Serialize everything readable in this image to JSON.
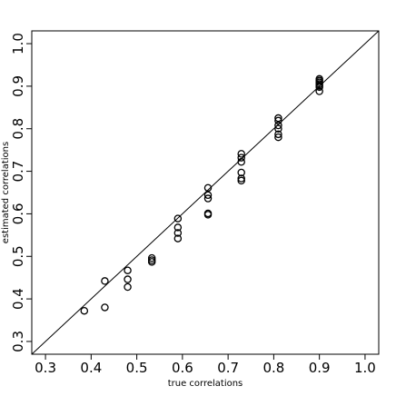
{
  "chart_data": {
    "type": "scatter",
    "title": "",
    "xlabel": "true correlations",
    "ylabel": "estimated correlations",
    "xlim": [
      0.27,
      1.03
    ],
    "ylim": [
      0.27,
      1.03
    ],
    "x_ticks": [
      0.3,
      0.4,
      0.5,
      0.6,
      0.7,
      0.8,
      0.9,
      1.0
    ],
    "x_tick_labels": [
      "0.3",
      "0.4",
      "0.5",
      "0.6",
      "0.7",
      "0.8",
      "0.9",
      "1.0"
    ],
    "y_ticks": [
      0.3,
      0.4,
      0.5,
      0.6,
      0.7,
      0.8,
      0.9,
      1.0
    ],
    "y_tick_labels": [
      "0.3",
      "0.4",
      "0.5",
      "0.6",
      "0.7",
      "0.8",
      "0.9",
      "1.0"
    ],
    "reference_line": {
      "slope": 1,
      "intercept": 0
    },
    "marker": "open-circle",
    "grid": false,
    "legend": "none",
    "points": [
      {
        "x": 0.385,
        "y": 0.372
      },
      {
        "x": 0.43,
        "y": 0.442
      },
      {
        "x": 0.43,
        "y": 0.38
      },
      {
        "x": 0.48,
        "y": 0.467
      },
      {
        "x": 0.48,
        "y": 0.446
      },
      {
        "x": 0.48,
        "y": 0.428
      },
      {
        "x": 0.533,
        "y": 0.496
      },
      {
        "x": 0.533,
        "y": 0.491
      },
      {
        "x": 0.533,
        "y": 0.487
      },
      {
        "x": 0.59,
        "y": 0.589
      },
      {
        "x": 0.59,
        "y": 0.568
      },
      {
        "x": 0.59,
        "y": 0.555
      },
      {
        "x": 0.59,
        "y": 0.542
      },
      {
        "x": 0.656,
        "y": 0.661
      },
      {
        "x": 0.656,
        "y": 0.644
      },
      {
        "x": 0.656,
        "y": 0.636
      },
      {
        "x": 0.656,
        "y": 0.601
      },
      {
        "x": 0.656,
        "y": 0.598
      },
      {
        "x": 0.729,
        "y": 0.741
      },
      {
        "x": 0.729,
        "y": 0.732
      },
      {
        "x": 0.729,
        "y": 0.722
      },
      {
        "x": 0.729,
        "y": 0.697
      },
      {
        "x": 0.729,
        "y": 0.683
      },
      {
        "x": 0.729,
        "y": 0.678
      },
      {
        "x": 0.81,
        "y": 0.825
      },
      {
        "x": 0.81,
        "y": 0.819
      },
      {
        "x": 0.81,
        "y": 0.808
      },
      {
        "x": 0.81,
        "y": 0.8
      },
      {
        "x": 0.81,
        "y": 0.787
      },
      {
        "x": 0.81,
        "y": 0.78
      },
      {
        "x": 0.9,
        "y": 0.917
      },
      {
        "x": 0.9,
        "y": 0.913
      },
      {
        "x": 0.9,
        "y": 0.909
      },
      {
        "x": 0.9,
        "y": 0.905
      },
      {
        "x": 0.9,
        "y": 0.901
      },
      {
        "x": 0.9,
        "y": 0.898
      },
      {
        "x": 0.9,
        "y": 0.888
      }
    ]
  }
}
